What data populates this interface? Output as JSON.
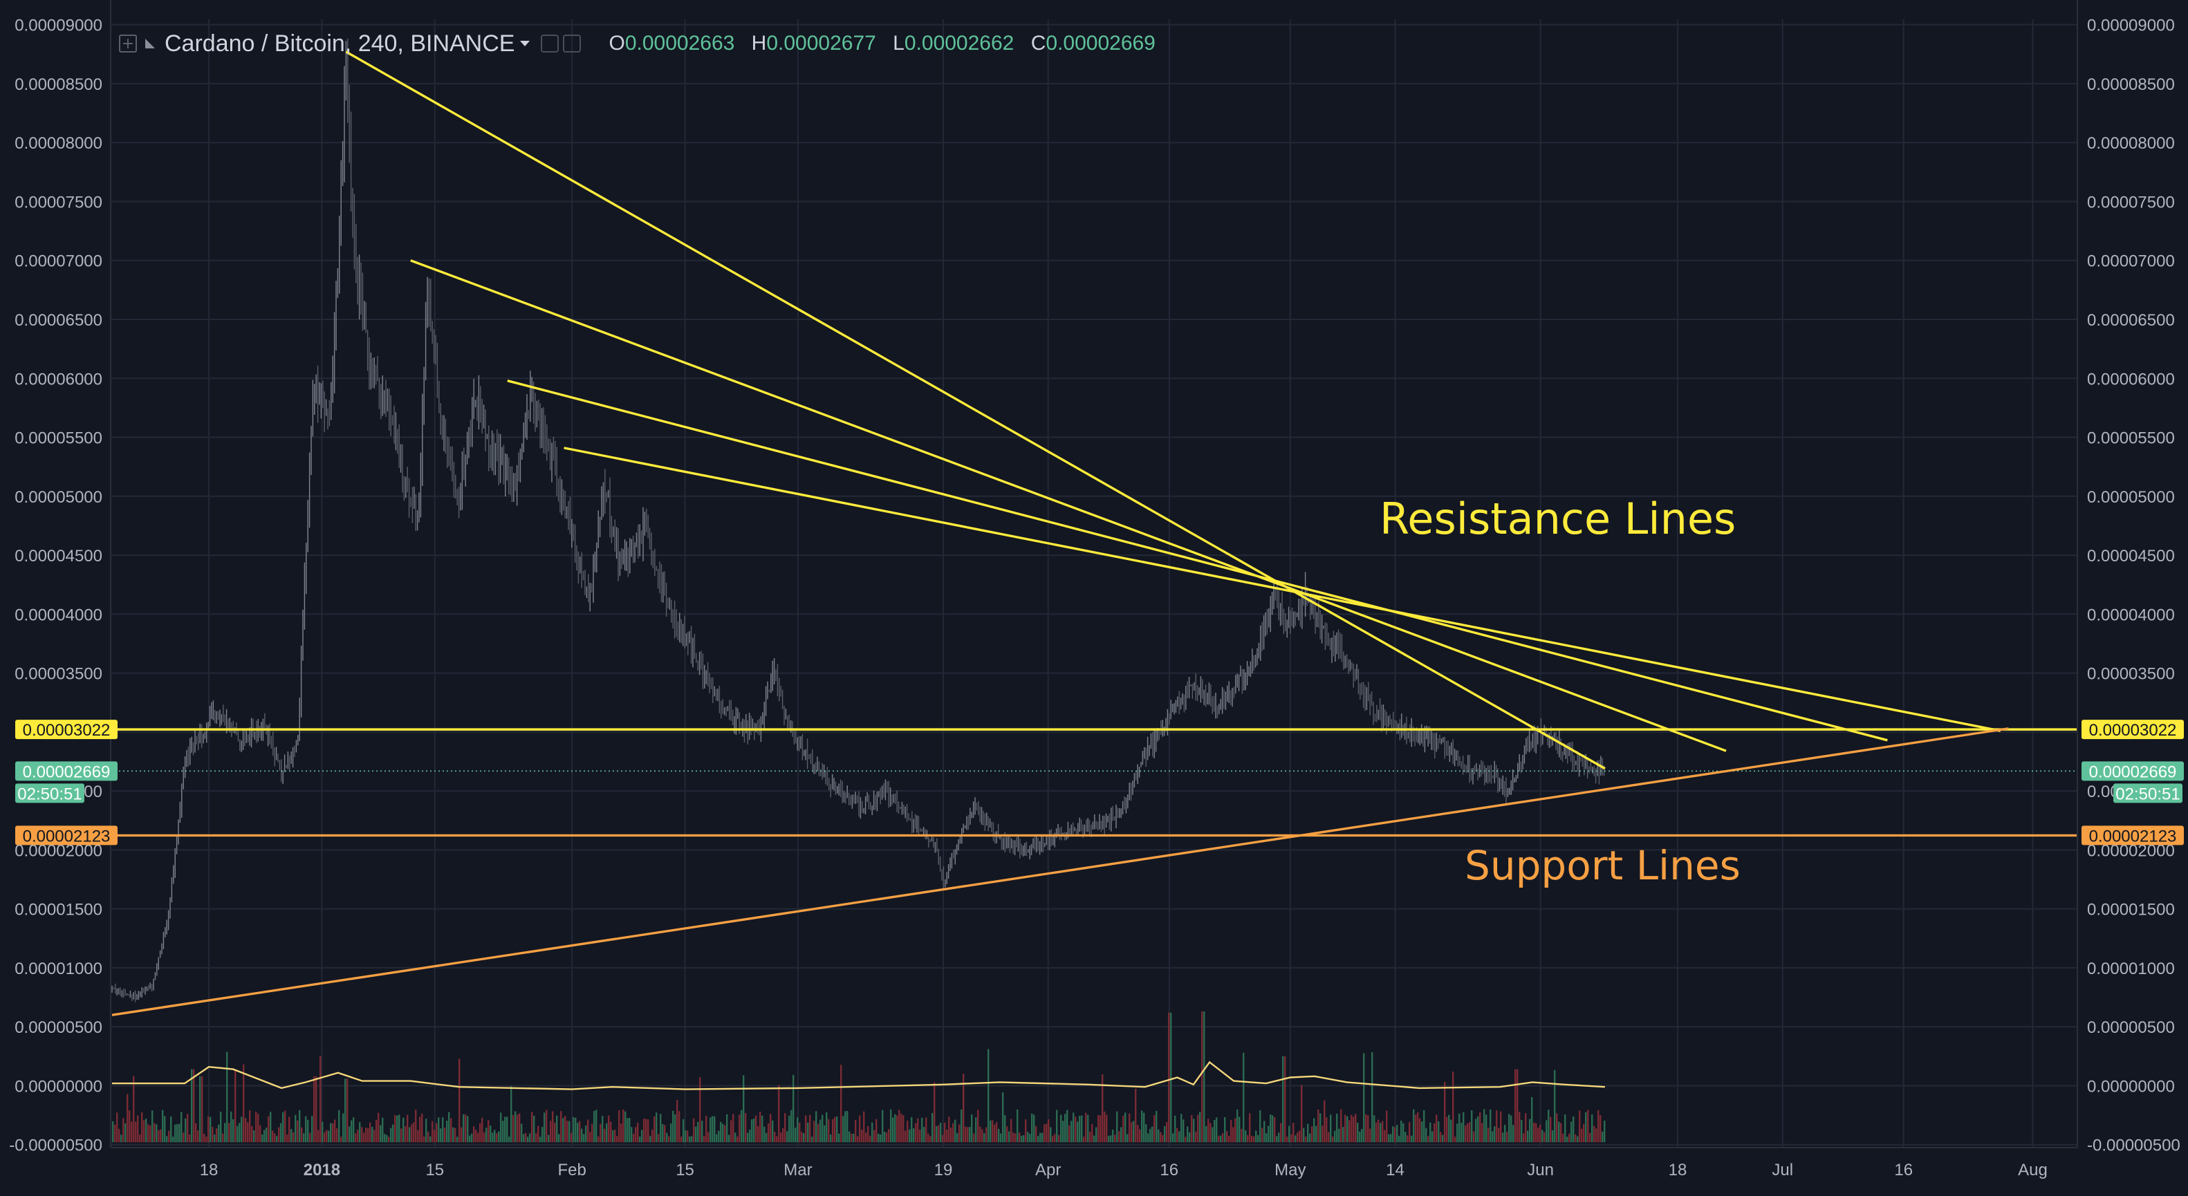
{
  "header": {
    "symbol": "Cardano / Bitcoin, 240, BINANCE",
    "ohlc": [
      {
        "key": "O",
        "value": "0.00002663"
      },
      {
        "key": "H",
        "value": "0.00002677"
      },
      {
        "key": "L",
        "value": "0.00002662"
      },
      {
        "key": "C",
        "value": "0.00002669"
      }
    ]
  },
  "annotations": {
    "resistance": "Resistance Lines",
    "support": "Support Lines"
  },
  "markers": {
    "resistance_level": "0.00003022",
    "last_price": "0.00002669",
    "countdown": "02:50:51",
    "support_level": "0.00002123"
  },
  "colors": {
    "background": "#131722",
    "grid": "#232837",
    "resistance": "#ffeb3b",
    "support": "#f7a043",
    "last_price": "#5fc29a",
    "candle_up": "#7f8591",
    "candle_down": "#5a5f6a",
    "volume_up": "#2b6b52",
    "volume_down": "#7b2b34",
    "volume_ma": "#f5d77a",
    "axis_text": "#b2b5be"
  },
  "chart_data": {
    "type": "line",
    "series_kind": "candlestick-with-volume",
    "y_ticks": [
      "0.00009000",
      "0.00008500",
      "0.00008000",
      "0.00007500",
      "0.00007000",
      "0.00006500",
      "0.00006000",
      "0.00005500",
      "0.00005000",
      "0.00004500",
      "0.00004000",
      "0.00003500",
      "0.00003000",
      "0.00002500",
      "0.00002000",
      "0.00001500",
      "0.00001000",
      "0.00000500",
      "0.00000000",
      "-0.00000500"
    ],
    "y_range": [
      -5.25e-06,
      9.045e-05
    ],
    "x_ticks": [
      {
        "label": "18",
        "date": "2017-12-18",
        "bold": false
      },
      {
        "label": "2018",
        "date": "2018-01-01",
        "bold": true
      },
      {
        "label": "15",
        "date": "2018-01-15",
        "bold": false
      },
      {
        "label": "Feb",
        "date": "2018-02-01",
        "bold": false
      },
      {
        "label": "15",
        "date": "2018-02-15",
        "bold": false
      },
      {
        "label": "Mar",
        "date": "2018-03-01",
        "bold": false
      },
      {
        "label": "19",
        "date": "2018-03-19",
        "bold": false
      },
      {
        "label": "Apr",
        "date": "2018-04-01",
        "bold": false
      },
      {
        "label": "16",
        "date": "2018-04-16",
        "bold": false
      },
      {
        "label": "May",
        "date": "2018-05-01",
        "bold": false
      },
      {
        "label": "14",
        "date": "2018-05-14",
        "bold": false
      },
      {
        "label": "Jun",
        "date": "2018-06-01",
        "bold": false
      },
      {
        "label": "18",
        "date": "2018-06-18",
        "bold": false
      },
      {
        "label": "Jul",
        "date": "2018-07-01",
        "bold": false
      },
      {
        "label": "16",
        "date": "2018-07-16",
        "bold": false
      },
      {
        "label": "Aug",
        "date": "2018-08-01",
        "bold": false
      }
    ],
    "price_path": [
      [
        "2017-12-06",
        8.2e-06
      ],
      [
        "2017-12-09",
        7.6e-06
      ],
      [
        "2017-12-11",
        8.5e-06
      ],
      [
        "2017-12-13",
        1.45e-05
      ],
      [
        "2017-12-15",
        2.75e-05
      ],
      [
        "2017-12-17",
        3e-05
      ],
      [
        "2017-12-19",
        3.15e-05
      ],
      [
        "2017-12-22",
        2.95e-05
      ],
      [
        "2017-12-25",
        3.05e-05
      ],
      [
        "2017-12-27",
        2.65e-05
      ],
      [
        "2017-12-29",
        2.9e-05
      ],
      [
        "2017-12-30",
        4.5e-05
      ],
      [
        "2017-12-31",
        6e-05
      ],
      [
        "2018-01-02",
        5.6e-05
      ],
      [
        "2018-01-03",
        7e-05
      ],
      [
        "2018-01-04",
        8.7e-05
      ],
      [
        "2018-01-05",
        7e-05
      ],
      [
        "2018-01-07",
        6.1e-05
      ],
      [
        "2018-01-09",
        5.8e-05
      ],
      [
        "2018-01-11",
        5.2e-05
      ],
      [
        "2018-01-13",
        4.8e-05
      ],
      [
        "2018-01-14",
        6.8e-05
      ],
      [
        "2018-01-16",
        5.5e-05
      ],
      [
        "2018-01-18",
        5e-05
      ],
      [
        "2018-01-20",
        5.9e-05
      ],
      [
        "2018-01-22",
        5.4e-05
      ],
      [
        "2018-01-25",
        5.1e-05
      ],
      [
        "2018-01-27",
        5.9e-05
      ],
      [
        "2018-01-29",
        5.4e-05
      ],
      [
        "2018-02-01",
        4.7e-05
      ],
      [
        "2018-02-03",
        4.1e-05
      ],
      [
        "2018-02-05",
        5.1e-05
      ],
      [
        "2018-02-07",
        4.4e-05
      ],
      [
        "2018-02-10",
        4.7e-05
      ],
      [
        "2018-02-12",
        4.2e-05
      ],
      [
        "2018-02-15",
        3.8e-05
      ],
      [
        "2018-02-18",
        3.4e-05
      ],
      [
        "2018-02-21",
        3.1e-05
      ],
      [
        "2018-02-24",
        3e-05
      ],
      [
        "2018-02-26",
        3.5e-05
      ],
      [
        "2018-02-28",
        3e-05
      ],
      [
        "2018-03-03",
        2.7e-05
      ],
      [
        "2018-03-06",
        2.5e-05
      ],
      [
        "2018-03-09",
        2.35e-05
      ],
      [
        "2018-03-12",
        2.5e-05
      ],
      [
        "2018-03-15",
        2.25e-05
      ],
      [
        "2018-03-18",
        2.05e-05
      ],
      [
        "2018-03-19",
        1.72e-05
      ],
      [
        "2018-03-21",
        2.1e-05
      ],
      [
        "2018-03-23",
        2.35e-05
      ],
      [
        "2018-03-26",
        2.1e-05
      ],
      [
        "2018-03-29",
        2e-05
      ],
      [
        "2018-04-01",
        2.1e-05
      ],
      [
        "2018-04-04",
        2.18e-05
      ],
      [
        "2018-04-07",
        2.2e-05
      ],
      [
        "2018-04-10",
        2.32e-05
      ],
      [
        "2018-04-13",
        2.8e-05
      ],
      [
        "2018-04-16",
        3.15e-05
      ],
      [
        "2018-04-19",
        3.4e-05
      ],
      [
        "2018-04-22",
        3.2e-05
      ],
      [
        "2018-04-25",
        3.45e-05
      ],
      [
        "2018-04-27",
        3.7e-05
      ],
      [
        "2018-04-29",
        4.15e-05
      ],
      [
        "2018-05-01",
        3.9e-05
      ],
      [
        "2018-05-03",
        4.18e-05
      ],
      [
        "2018-05-05",
        3.85e-05
      ],
      [
        "2018-05-08",
        3.6e-05
      ],
      [
        "2018-05-11",
        3.2e-05
      ],
      [
        "2018-05-14",
        3.05e-05
      ],
      [
        "2018-05-17",
        2.95e-05
      ],
      [
        "2018-05-20",
        2.9e-05
      ],
      [
        "2018-05-23",
        2.7e-05
      ],
      [
        "2018-05-26",
        2.65e-05
      ],
      [
        "2018-05-28",
        2.48e-05
      ],
      [
        "2018-05-30",
        2.85e-05
      ],
      [
        "2018-06-01",
        3e-05
      ],
      [
        "2018-06-03",
        2.9e-05
      ],
      [
        "2018-06-05",
        2.78e-05
      ],
      [
        "2018-06-07",
        2.7e-05
      ],
      [
        "2018-06-09",
        2.67e-05
      ]
    ],
    "volume_ma": [
      [
        "2017-12-06",
        2e-07
      ],
      [
        "2017-12-15",
        2e-07
      ],
      [
        "2017-12-18",
        1.6e-06
      ],
      [
        "2017-12-21",
        1.4e-06
      ],
      [
        "2017-12-24",
        6e-07
      ],
      [
        "2017-12-27",
        -2e-07
      ],
      [
        "2017-12-30",
        3e-07
      ],
      [
        "2018-01-03",
        1.1e-06
      ],
      [
        "2018-01-06",
        4e-07
      ],
      [
        "2018-01-12",
        4e-07
      ],
      [
        "2018-01-18",
        -1e-07
      ],
      [
        "2018-01-25",
        -2e-07
      ],
      [
        "2018-02-01",
        -3e-07
      ],
      [
        "2018-02-06",
        -1e-07
      ],
      [
        "2018-02-15",
        -3e-07
      ],
      [
        "2018-03-01",
        -2e-07
      ],
      [
        "2018-03-19",
        1e-07
      ],
      [
        "2018-03-26",
        3e-07
      ],
      [
        "2018-04-06",
        1e-07
      ],
      [
        "2018-04-13",
        -1e-07
      ],
      [
        "2018-04-17",
        7e-07
      ],
      [
        "2018-04-19",
        1e-07
      ],
      [
        "2018-04-21",
        2e-06
      ],
      [
        "2018-04-24",
        4e-07
      ],
      [
        "2018-04-28",
        2e-07
      ],
      [
        "2018-05-01",
        7e-07
      ],
      [
        "2018-05-04",
        8e-07
      ],
      [
        "2018-05-08",
        3e-07
      ],
      [
        "2018-05-17",
        -2e-07
      ],
      [
        "2018-05-27",
        -1e-07
      ],
      [
        "2018-05-31",
        3e-07
      ],
      [
        "2018-06-04",
        1e-07
      ],
      [
        "2018-06-09",
        -1e-07
      ]
    ],
    "volume_spikes": [
      [
        "2017-12-16",
        1.4e-06
      ],
      [
        "2017-12-17",
        8e-07
      ],
      [
        "2017-12-31",
        8e-07
      ],
      [
        "2018-01-04",
        6e-07
      ],
      [
        "2018-04-16",
        6.2e-06
      ],
      [
        "2018-04-20",
        6.3e-06
      ],
      [
        "2018-04-30",
        2.5e-06
      ],
      [
        "2018-05-29",
        1.4e-06
      ]
    ],
    "resistance_lines": [
      [
        [
          "2018-01-04",
          8.77e-05
        ],
        [
          "2018-06-09",
          2.69e-05
        ]
      ],
      [
        [
          "2018-01-12",
          7e-05
        ],
        [
          "2018-06-24",
          2.84e-05
        ]
      ],
      [
        [
          "2018-01-24",
          5.98e-05
        ],
        [
          "2018-07-14",
          2.93e-05
        ]
      ],
      [
        [
          "2018-01-31",
          5.41e-05
        ],
        [
          "2018-07-28",
          3.01e-05
        ]
      ]
    ],
    "support_line": [
      [
        "2017-12-06",
        6e-06
      ],
      [
        "2018-07-29",
        3.03e-05
      ]
    ],
    "horizontal_levels": [
      3.022e-05,
      2.123e-05
    ],
    "last_price": 2.669e-05
  }
}
